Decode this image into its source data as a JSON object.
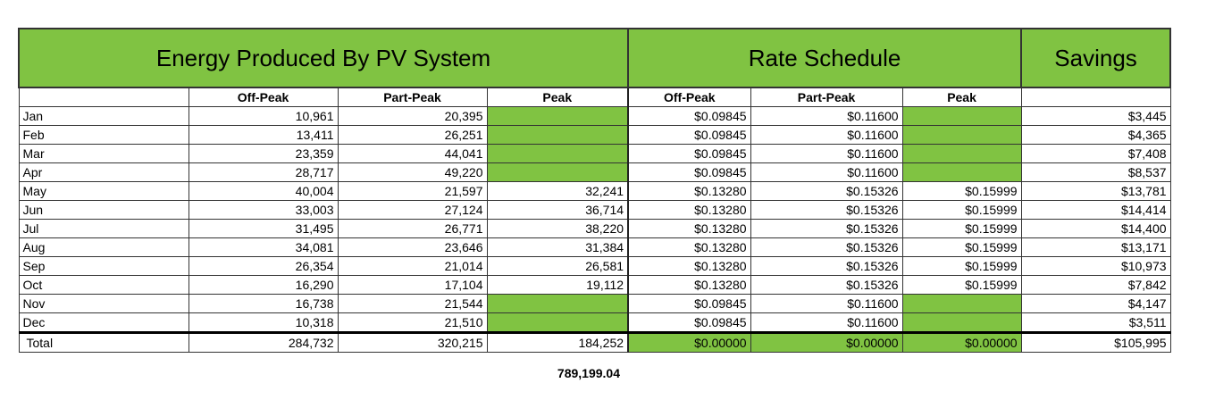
{
  "headers": {
    "energy": "Energy Produced By PV System",
    "rates": "Rate Schedule",
    "savings": "Savings"
  },
  "subheaders": [
    "Off-Peak",
    "Part-Peak",
    "Peak",
    "Off-Peak",
    "Part-Peak",
    "Peak"
  ],
  "rows": [
    {
      "month": "Jan",
      "e_off": "10,961",
      "e_part": "20,395",
      "e_peak": "",
      "r_off": "$0.09845",
      "r_part": "$0.11600",
      "r_peak": "",
      "savings": "$3,445"
    },
    {
      "month": "Feb",
      "e_off": "13,411",
      "e_part": "26,251",
      "e_peak": "",
      "r_off": "$0.09845",
      "r_part": "$0.11600",
      "r_peak": "",
      "savings": "$4,365"
    },
    {
      "month": "Mar",
      "e_off": "23,359",
      "e_part": "44,041",
      "e_peak": "",
      "r_off": "$0.09845",
      "r_part": "$0.11600",
      "r_peak": "",
      "savings": "$7,408"
    },
    {
      "month": "Apr",
      "e_off": "28,717",
      "e_part": "49,220",
      "e_peak": "",
      "r_off": "$0.09845",
      "r_part": "$0.11600",
      "r_peak": "",
      "savings": "$8,537"
    },
    {
      "month": "May",
      "e_off": "40,004",
      "e_part": "21,597",
      "e_peak": "32,241",
      "r_off": "$0.13280",
      "r_part": "$0.15326",
      "r_peak": "$0.15999",
      "savings": "$13,781"
    },
    {
      "month": "Jun",
      "e_off": "33,003",
      "e_part": "27,124",
      "e_peak": "36,714",
      "r_off": "$0.13280",
      "r_part": "$0.15326",
      "r_peak": "$0.15999",
      "savings": "$14,414"
    },
    {
      "month": "Jul",
      "e_off": "31,495",
      "e_part": "26,771",
      "e_peak": "38,220",
      "r_off": "$0.13280",
      "r_part": "$0.15326",
      "r_peak": "$0.15999",
      "savings": "$14,400"
    },
    {
      "month": "Aug",
      "e_off": "34,081",
      "e_part": "23,646",
      "e_peak": "31,384",
      "r_off": "$0.13280",
      "r_part": "$0.15326",
      "r_peak": "$0.15999",
      "savings": "$13,171"
    },
    {
      "month": "Sep",
      "e_off": "26,354",
      "e_part": "21,014",
      "e_peak": "26,581",
      "r_off": "$0.13280",
      "r_part": "$0.15326",
      "r_peak": "$0.15999",
      "savings": "$10,973"
    },
    {
      "month": "Oct",
      "e_off": "16,290",
      "e_part": "17,104",
      "e_peak": "19,112",
      "r_off": "$0.13280",
      "r_part": "$0.15326",
      "r_peak": "$0.15999",
      "savings": "$7,842"
    },
    {
      "month": "Nov",
      "e_off": "16,738",
      "e_part": "21,544",
      "e_peak": "",
      "r_off": "$0.09845",
      "r_part": "$0.11600",
      "r_peak": "",
      "savings": "$4,147"
    },
    {
      "month": "Dec",
      "e_off": "10,318",
      "e_part": "21,510",
      "e_peak": "",
      "r_off": "$0.09845",
      "r_part": "$0.11600",
      "r_peak": "",
      "savings": "$3,511"
    }
  ],
  "total": {
    "label": "Total",
    "e_off": "284,732",
    "e_part": "320,215",
    "e_peak": "184,252",
    "r_off": "$0.00000",
    "r_part": "$0.00000",
    "r_peak": "$0.00000",
    "savings": "$105,995"
  },
  "grand_total": "789,199.04",
  "colors": {
    "header_green": "#80c342",
    "border": "#333333"
  }
}
